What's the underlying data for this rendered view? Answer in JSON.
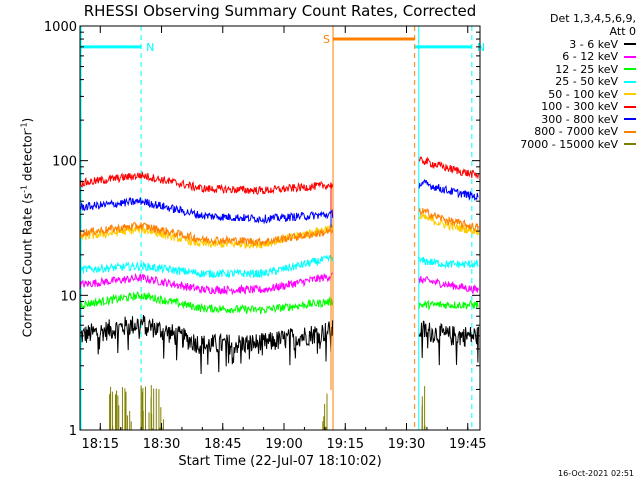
{
  "header": {
    "title": "RHESSI Observing Summary Count Rates, Corrected",
    "timestamp": "16-Oct-2021 02:51"
  },
  "legend": {
    "detectors_line1": "Det 1,3,4,5,6,9,",
    "detectors_line2": "Att 0"
  },
  "chart_data": {
    "type": "line",
    "title": "RHESSI Observing Summary Count Rates, Corrected",
    "xlabel": "Start Time (22-Jul-07 18:10:02)",
    "ylabel_main": "Corrected Count Rate (s",
    "ylabel_sup1": "-1",
    "ylabel_mid": " detector",
    "ylabel_sup2": "-1",
    "ylabel_end": ")",
    "yscale": "log",
    "ylim": [
      1,
      1000
    ],
    "xlim": [
      "18:10:02",
      "19:48:00"
    ],
    "x_ticks": [
      "18:15",
      "18:30",
      "18:45",
      "19:00",
      "19:15",
      "19:30",
      "19:45"
    ],
    "y_ticks": [
      "1",
      "10",
      "100",
      "1000"
    ],
    "data_gap": [
      "19:12",
      "19:33"
    ],
    "series": [
      {
        "name": "3 - 6 keV",
        "color": "#000000",
        "level": 5.0,
        "x": [
          "18:10",
          "18:25",
          "18:40",
          "18:55",
          "19:12",
          "19:34",
          "19:40",
          "19:47"
        ],
        "y": [
          5.0,
          6.2,
          4.3,
          4.4,
          5.5,
          5.5,
          5.0,
          5.0
        ]
      },
      {
        "name": "6 - 12 keV",
        "color": "#ff00ff",
        "level": 12,
        "x": [
          "18:10",
          "18:25",
          "18:40",
          "18:55",
          "19:12",
          "19:34",
          "19:40",
          "19:47"
        ],
        "y": [
          12,
          13.5,
          11,
          11,
          14,
          13,
          12,
          11
        ]
      },
      {
        "name": "12 - 25 keV",
        "color": "#00ff00",
        "level": 9,
        "x": [
          "18:10",
          "18:25",
          "18:40",
          "18:55",
          "19:12",
          "19:34",
          "19:40",
          "19:47"
        ],
        "y": [
          8.5,
          10,
          8,
          7.8,
          9,
          8.5,
          8.5,
          8.5
        ]
      },
      {
        "name": "25 - 50 keV",
        "color": "#00ffff",
        "level": 16,
        "x": [
          "18:10",
          "18:25",
          "18:40",
          "18:55",
          "19:12",
          "19:34",
          "19:40",
          "19:47"
        ],
        "y": [
          15.5,
          16.5,
          14.5,
          14.5,
          19,
          18,
          17,
          17
        ]
      },
      {
        "name": "50 - 100 keV",
        "color": "#ffcc00",
        "level": 28,
        "x": [
          "18:10",
          "18:25",
          "18:40",
          "18:55",
          "19:12",
          "19:34",
          "19:40",
          "19:47"
        ],
        "y": [
          27,
          31,
          24,
          24,
          32,
          38,
          33,
          30
        ]
      },
      {
        "name": "100 - 300 keV",
        "color": "#ff0000",
        "level": 68,
        "x": [
          "18:10",
          "18:25",
          "18:40",
          "18:55",
          "19:12",
          "19:34",
          "19:40",
          "19:47"
        ],
        "y": [
          68,
          78,
          62,
          60,
          66,
          100,
          88,
          78
        ]
      },
      {
        "name": "300 - 800 keV",
        "color": "#0000ff",
        "level": 45,
        "x": [
          "18:10",
          "18:25",
          "18:40",
          "18:55",
          "19:12",
          "19:34",
          "19:40",
          "19:47"
        ],
        "y": [
          45,
          50,
          39,
          37,
          40,
          68,
          60,
          54
        ]
      },
      {
        "name": "800 - 7000 keV",
        "color": "#ff8000",
        "level": 29,
        "x": [
          "18:10",
          "18:25",
          "18:40",
          "18:55",
          "19:12",
          "19:34",
          "19:40",
          "19:47"
        ],
        "y": [
          29,
          33,
          26,
          25,
          30,
          42,
          36,
          32
        ]
      },
      {
        "name": "7000 - 15000 keV",
        "color": "#808000",
        "level": 1.0,
        "x": [
          "18:20",
          "18:28",
          "19:10",
          "19:34"
        ],
        "y": [
          2,
          2,
          2,
          2
        ]
      }
    ],
    "annotations": [
      {
        "label": "N",
        "color": "#00ffff",
        "time": "18:25",
        "x_start": "18:10",
        "x_end": "18:25",
        "value": 700
      },
      {
        "label": "N",
        "color": "#00ffff",
        "time": "19:46",
        "x_start": "19:32",
        "x_end": "19:46",
        "value": 700
      },
      {
        "label": "S",
        "color": "#ff8000",
        "time": "19:32",
        "x_start": "19:12",
        "x_end": "19:32",
        "value": 800
      }
    ]
  }
}
